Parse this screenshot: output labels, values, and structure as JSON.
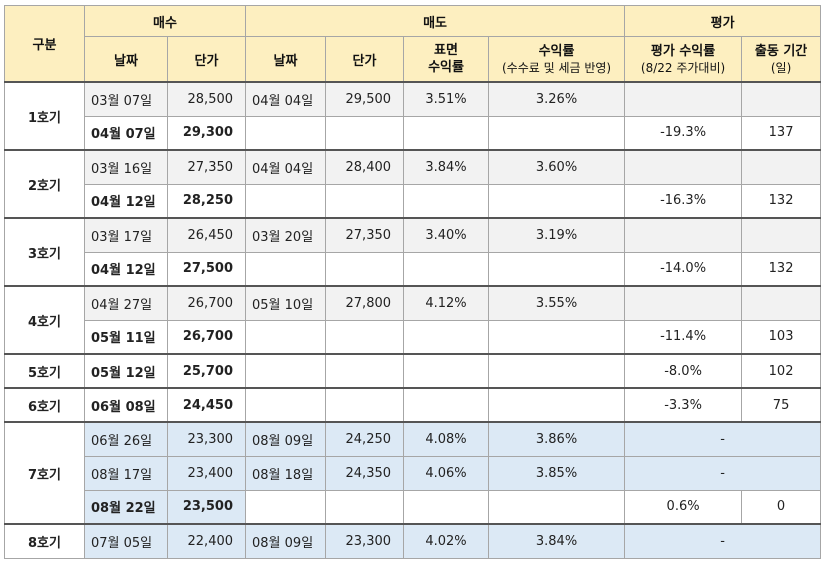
{
  "headers": {
    "group": "구분",
    "buy": "매수",
    "sell": "매도",
    "eval": "평가",
    "buy_date": "날짜",
    "buy_price": "단가",
    "sell_date": "날짜",
    "sell_price": "단가",
    "surface_return_1": "표면",
    "surface_return_2": "수익률",
    "return_main": "수익률",
    "return_sub": "(수수료 및 세금 반영)",
    "eval_return_main": "평가 수익률",
    "eval_return_sub": "(8/22 주가대비)",
    "period_main": "출동 기간",
    "period_sub": "(일)"
  },
  "groups": [
    {
      "label": "1호기",
      "rows": [
        {
          "buy_date": "03월 07일",
          "buy_price": "28,500",
          "sell_date": "04월 04일",
          "sell_price": "29,500",
          "surface": "3.51%",
          "ret": "3.26%",
          "eval": "",
          "period": "",
          "bold": false,
          "shade": "grey"
        },
        {
          "buy_date": "04월 07일",
          "buy_price": "29,300",
          "sell_date": "",
          "sell_price": "",
          "surface": "",
          "ret": "",
          "eval": "-19.3%",
          "period": "137",
          "bold": true,
          "shade": "none"
        }
      ]
    },
    {
      "label": "2호기",
      "rows": [
        {
          "buy_date": "03월 16일",
          "buy_price": "27,350",
          "sell_date": "04월 04일",
          "sell_price": "28,400",
          "surface": "3.84%",
          "ret": "3.60%",
          "eval": "",
          "period": "",
          "bold": false,
          "shade": "grey"
        },
        {
          "buy_date": "04월 12일",
          "buy_price": "28,250",
          "sell_date": "",
          "sell_price": "",
          "surface": "",
          "ret": "",
          "eval": "-16.3%",
          "period": "132",
          "bold": true,
          "shade": "none"
        }
      ]
    },
    {
      "label": "3호기",
      "rows": [
        {
          "buy_date": "03월 17일",
          "buy_price": "26,450",
          "sell_date": "03월 20일",
          "sell_price": "27,350",
          "surface": "3.40%",
          "ret": "3.19%",
          "eval": "",
          "period": "",
          "bold": false,
          "shade": "grey"
        },
        {
          "buy_date": "04월 12일",
          "buy_price": "27,500",
          "sell_date": "",
          "sell_price": "",
          "surface": "",
          "ret": "",
          "eval": "-14.0%",
          "period": "132",
          "bold": true,
          "shade": "none"
        }
      ]
    },
    {
      "label": "4호기",
      "rows": [
        {
          "buy_date": "04월 27일",
          "buy_price": "26,700",
          "sell_date": "05월 10일",
          "sell_price": "27,800",
          "surface": "4.12%",
          "ret": "3.55%",
          "eval": "",
          "period": "",
          "bold": false,
          "shade": "grey"
        },
        {
          "buy_date": "05월 11일",
          "buy_price": "26,700",
          "sell_date": "",
          "sell_price": "",
          "surface": "",
          "ret": "",
          "eval": "-11.4%",
          "period": "103",
          "bold": true,
          "shade": "none"
        }
      ]
    },
    {
      "label": "5호기",
      "rows": [
        {
          "buy_date": "05월 12일",
          "buy_price": "25,700",
          "sell_date": "",
          "sell_price": "",
          "surface": "",
          "ret": "",
          "eval": "-8.0%",
          "period": "102",
          "bold": true,
          "shade": "none"
        }
      ]
    },
    {
      "label": "6호기",
      "rows": [
        {
          "buy_date": "06월 08일",
          "buy_price": "24,450",
          "sell_date": "",
          "sell_price": "",
          "surface": "",
          "ret": "",
          "eval": "-3.3%",
          "period": "75",
          "bold": true,
          "shade": "none"
        }
      ]
    },
    {
      "label": "7호기",
      "rows": [
        {
          "buy_date": "06월 26일",
          "buy_price": "23,300",
          "sell_date": "08월 09일",
          "sell_price": "24,250",
          "surface": "4.08%",
          "ret": "3.86%",
          "eval": "-",
          "period": "",
          "bold": false,
          "shade": "sold"
        },
        {
          "buy_date": "08월 17일",
          "buy_price": "23,400",
          "sell_date": "08월 18일",
          "sell_price": "24,350",
          "surface": "4.06%",
          "ret": "3.85%",
          "eval": "-",
          "period": "",
          "bold": false,
          "shade": "sold"
        },
        {
          "buy_date": "08월 22일",
          "buy_price": "23,500",
          "sell_date": "",
          "sell_price": "",
          "surface": "",
          "ret": "",
          "eval": "0.6%",
          "period": "0",
          "bold": true,
          "shade": "newbuy"
        }
      ]
    },
    {
      "label": "8호기",
      "rows": [
        {
          "buy_date": "07월 05일",
          "buy_price": "22,400",
          "sell_date": "08월 09일",
          "sell_price": "23,300",
          "surface": "4.02%",
          "ret": "3.84%",
          "eval": "-",
          "period": "",
          "bold": false,
          "shade": "sold"
        }
      ]
    }
  ],
  "colors": {
    "header_bg": "#fdefc0",
    "grey_row": "#f2f2f2",
    "blue_row": "#dce9f5",
    "border": "#a6a6a6"
  }
}
